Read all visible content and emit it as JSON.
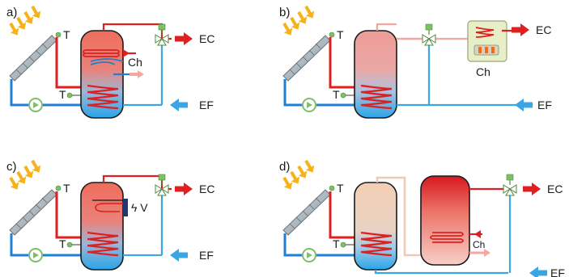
{
  "panels": [
    {
      "label": "a)",
      "sensor": "T",
      "sensor_low": "T",
      "hot_out": "EC",
      "cold_in": "EF",
      "aux": "Ch"
    },
    {
      "label": "b)",
      "sensor": "T",
      "sensor_low": "T",
      "hot_out": "EC",
      "cold_in": "EF",
      "aux": "Ch"
    },
    {
      "label": "c)",
      "sensor": "T",
      "sensor_low": "T",
      "hot_out": "EC",
      "cold_in": "EF",
      "aux": "ϟ V"
    },
    {
      "label": "d)",
      "sensor": "T",
      "sensor_low": "T",
      "hot_out": "EC",
      "cold_in": "EF",
      "aux": "Ch"
    }
  ],
  "colors": {
    "hot": "#e02020",
    "cold": "#3aa6e6",
    "pale_hot": "#f2a7a0",
    "sun": "#f7b21b",
    "valve": "#7fbf6a",
    "tank_outline": "#1a1a1a"
  }
}
